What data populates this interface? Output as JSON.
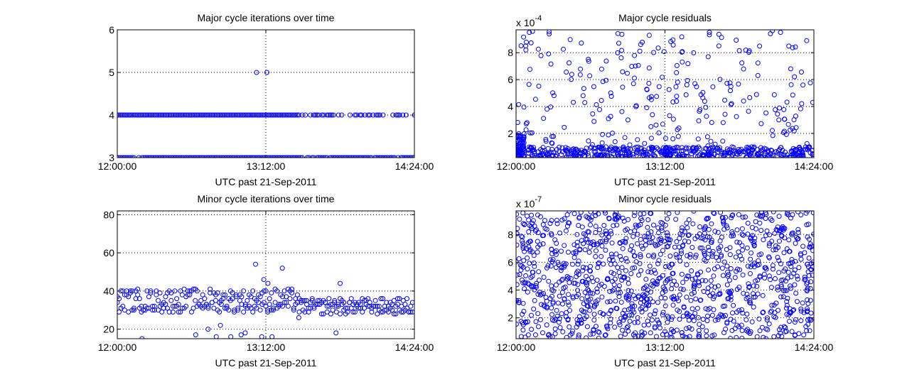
{
  "figure": {
    "background": "#ffffff",
    "axes_color": "#000000",
    "marker_color": "#0000ff"
  },
  "chart_data": [
    {
      "type": "scatter",
      "title": "Major cycle iterations over time",
      "xlabel": "UTC past 21-Sep-2011",
      "ylabel": "",
      "xlim": [
        0,
        144
      ],
      "ylim": [
        3,
        6
      ],
      "x_ticks": [
        0,
        72,
        144
      ],
      "x_tick_labels": [
        "12:00:00",
        "13:12:00",
        "14:24:00"
      ],
      "y_ticks": [
        3,
        4,
        5,
        6
      ],
      "y_tick_labels": [
        "3",
        "4",
        "5",
        "6"
      ],
      "y_exponent_label": "",
      "grid": true,
      "x_units": "minutes past 12:00:00",
      "series": [
        {
          "color": "#0000ff",
          "marker": "circle-open",
          "x": [],
          "y": []
        }
      ]
    },
    {
      "type": "scatter",
      "title": "Major cycle residuals",
      "xlabel": "UTC past 21-Sep-2011",
      "ylabel": "",
      "xlim": [
        0,
        144
      ],
      "ylim": [
        2e-05,
        0.00097
      ],
      "x_ticks": [
        0,
        72,
        144
      ],
      "x_tick_labels": [
        "12:00:00",
        "13:12:00",
        "14:24:00"
      ],
      "y_ticks": [
        0.0002,
        0.0004,
        0.0006,
        0.0008
      ],
      "y_tick_labels": [
        "2",
        "4",
        "6",
        "8"
      ],
      "y_exponent_label": "x 10",
      "y_exponent": "-4",
      "grid": true,
      "x_units": "minutes past 12:00:00",
      "series": [
        {
          "color": "#0000ff",
          "marker": "circle-open",
          "x": [],
          "y": []
        }
      ]
    },
    {
      "type": "scatter",
      "title": "Minor cycle iterations over time",
      "xlabel": "UTC past 21-Sep-2011",
      "ylabel": "",
      "xlim": [
        0,
        144
      ],
      "ylim": [
        15,
        82
      ],
      "x_ticks": [
        0,
        72,
        144
      ],
      "x_tick_labels": [
        "12:00:00",
        "13:12:00",
        "14:24:00"
      ],
      "y_ticks": [
        20,
        40,
        60,
        80
      ],
      "y_tick_labels": [
        "20",
        "40",
        "60",
        "80"
      ],
      "y_exponent_label": "",
      "grid": true,
      "x_units": "minutes past 12:00:00",
      "series": [
        {
          "color": "#0000ff",
          "marker": "circle-open",
          "x": [],
          "y": []
        }
      ]
    },
    {
      "type": "scatter",
      "title": "Minor cycle residuals",
      "xlabel": "UTC past 21-Sep-2011",
      "ylabel": "",
      "xlim": [
        0,
        144
      ],
      "ylim": [
        5e-08,
        9.7e-07
      ],
      "x_ticks": [
        0,
        72,
        144
      ],
      "x_tick_labels": [
        "12:00:00",
        "13:12:00",
        "14:24:00"
      ],
      "y_ticks": [
        2e-07,
        4e-07,
        6e-07,
        8e-07
      ],
      "y_tick_labels": [
        "2",
        "4",
        "6",
        "8"
      ],
      "y_exponent_label": "x 10",
      "y_exponent": "-7",
      "grid": true,
      "x_units": "minutes past 12:00:00",
      "series": [
        {
          "color": "#0000ff",
          "marker": "circle-open",
          "x": [],
          "y": []
        }
      ]
    }
  ]
}
